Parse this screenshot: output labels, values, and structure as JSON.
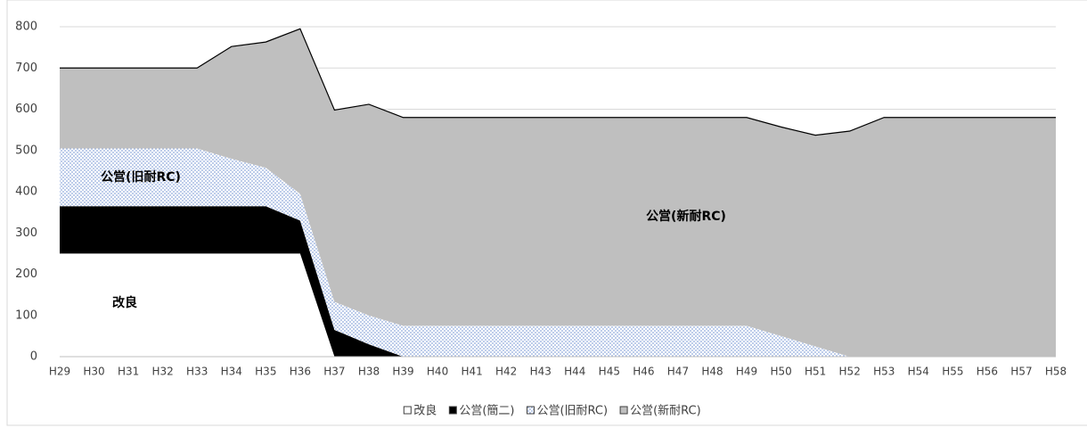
{
  "chart_data": {
    "type": "stacked_area",
    "categories": [
      "H29",
      "H30",
      "H31",
      "H32",
      "H33",
      "H34",
      "H35",
      "H36",
      "H37",
      "H38",
      "H39",
      "H40",
      "H41",
      "H42",
      "H43",
      "H44",
      "H45",
      "H46",
      "H47",
      "H48",
      "H49",
      "H50",
      "H51",
      "H52",
      "H53",
      "H54",
      "H55",
      "H56",
      "H57",
      "H58"
    ],
    "series": [
      {
        "name": "改良",
        "color": "#ffffff",
        "values": [
          250,
          250,
          250,
          250,
          250,
          250,
          250,
          250,
          0,
          0,
          0,
          0,
          0,
          0,
          0,
          0,
          0,
          0,
          0,
          0,
          0,
          0,
          0,
          0,
          0,
          0,
          0,
          0,
          0,
          0
        ]
      },
      {
        "name": "公営(簡二)",
        "color": "#000000",
        "values": [
          115,
          115,
          115,
          115,
          115,
          115,
          115,
          80,
          65,
          30,
          0,
          0,
          0,
          0,
          0,
          0,
          0,
          0,
          0,
          0,
          0,
          0,
          0,
          0,
          0,
          0,
          0,
          0,
          0,
          0
        ]
      },
      {
        "name": "公営(旧耐RC)",
        "color": "#8fa9dc",
        "fill_pattern": "dots",
        "values": [
          140,
          140,
          140,
          140,
          140,
          115,
          93,
          65,
          68,
          70,
          75,
          75,
          75,
          75,
          75,
          75,
          75,
          75,
          75,
          75,
          75,
          50,
          25,
          0,
          0,
          0,
          0,
          0,
          0,
          0
        ]
      },
      {
        "name": "公営(新耐RC)",
        "color": "#bfbfbf",
        "values": [
          195,
          195,
          195,
          195,
          195,
          272,
          305,
          400,
          465,
          512,
          505,
          505,
          505,
          505,
          505,
          505,
          505,
          505,
          505,
          505,
          505,
          507,
          512,
          547,
          580,
          580,
          580,
          580,
          580,
          580
        ]
      }
    ],
    "ylim": [
      0,
      800
    ],
    "yticks": [
      0,
      100,
      200,
      300,
      400,
      500,
      600,
      700,
      800
    ],
    "grid": true,
    "legend": "bottom"
  }
}
